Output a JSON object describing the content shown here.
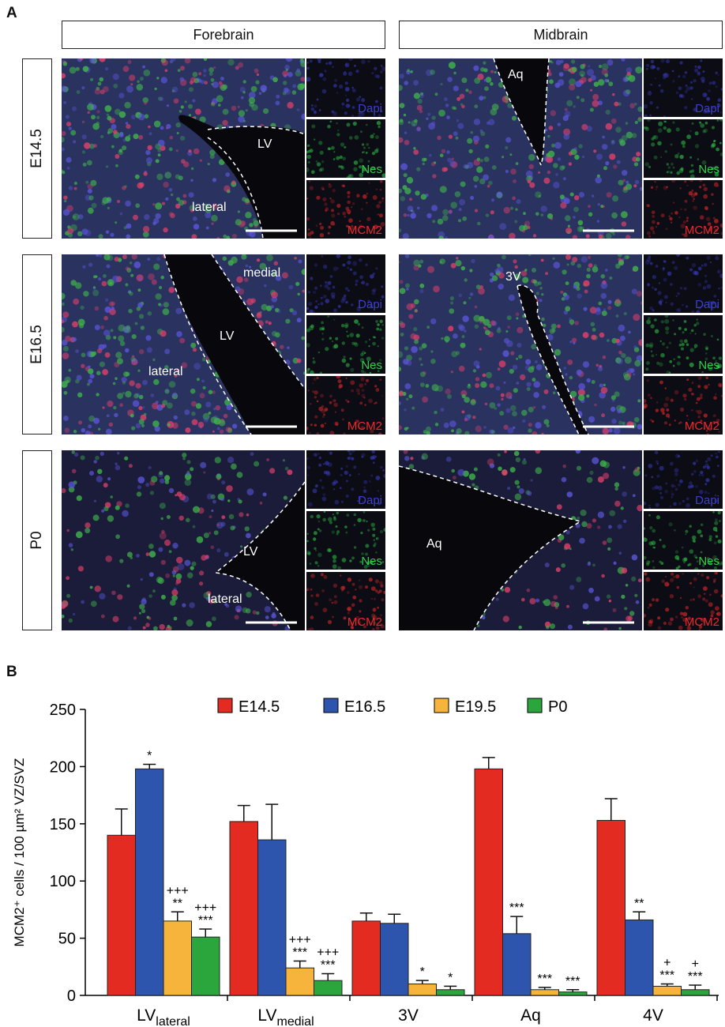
{
  "panel_a": {
    "letter": "A",
    "regions": [
      "Forebrain",
      "Midbrain"
    ],
    "stages": [
      "E14.5",
      "E16.5",
      "P0"
    ],
    "channels": [
      "Dapi",
      "Nes",
      "MCM2"
    ],
    "channel_colors": {
      "Dapi": "#3d3fd0",
      "Nes": "#2fd04a",
      "MCM2": "#ee2a2a"
    },
    "image_labels": {
      "fore_e145": [
        "LV",
        "lateral"
      ],
      "fore_e165": [
        "LV",
        "lateral",
        "medial"
      ],
      "fore_p0": [
        "LV",
        "lateral"
      ],
      "mid_e145": [
        "Aq"
      ],
      "mid_e165": [
        "3V"
      ],
      "mid_p0": [
        "Aq"
      ]
    }
  },
  "panel_b": {
    "letter": "B"
  },
  "chart_data": {
    "type": "bar",
    "xlabel": "",
    "ylabel": "MCM2⁺ cells / 100 µm² VZ/SVZ",
    "ylim": [
      0,
      250
    ],
    "yticks": [
      0,
      50,
      100,
      150,
      200,
      250
    ],
    "categories": [
      "LV_lateral",
      "LV_medial",
      "3V",
      "Aq",
      "4V"
    ],
    "category_labels": [
      {
        "main": "LV",
        "sub": "lateral"
      },
      {
        "main": "LV",
        "sub": "medial"
      },
      {
        "main": "3V",
        "sub": ""
      },
      {
        "main": "Aq",
        "sub": ""
      },
      {
        "main": "4V",
        "sub": ""
      }
    ],
    "legend_position": "top",
    "series": [
      {
        "name": "E14.5",
        "color": "#e32b22",
        "values": [
          140,
          152,
          65,
          198,
          153
        ],
        "errors": [
          23,
          14,
          7,
          10,
          19
        ]
      },
      {
        "name": "E16.5",
        "color": "#2e55ad",
        "values": [
          198,
          136,
          63,
          54,
          66
        ],
        "errors": [
          4,
          31,
          8,
          15,
          7
        ]
      },
      {
        "name": "E19.5",
        "color": "#f7b43c",
        "values": [
          65,
          24,
          10,
          5,
          8
        ],
        "errors": [
          8,
          6,
          3,
          2,
          2
        ]
      },
      {
        "name": "P0",
        "color": "#2aa63c",
        "values": [
          51,
          13,
          5,
          3,
          5
        ],
        "errors": [
          7,
          6,
          3,
          2,
          4
        ]
      }
    ],
    "annotations": [
      {
        "category": 0,
        "series": 1,
        "lines": [
          "*"
        ]
      },
      {
        "category": 0,
        "series": 2,
        "lines": [
          "+++",
          "**"
        ]
      },
      {
        "category": 0,
        "series": 3,
        "lines": [
          "+++",
          "***"
        ]
      },
      {
        "category": 1,
        "series": 2,
        "lines": [
          "+++",
          "***"
        ]
      },
      {
        "category": 1,
        "series": 3,
        "lines": [
          "+++",
          "***"
        ]
      },
      {
        "category": 2,
        "series": 2,
        "lines": [
          "*"
        ]
      },
      {
        "category": 2,
        "series": 3,
        "lines": [
          "*"
        ]
      },
      {
        "category": 3,
        "series": 1,
        "lines": [
          "***"
        ]
      },
      {
        "category": 3,
        "series": 2,
        "lines": [
          "***"
        ]
      },
      {
        "category": 3,
        "series": 3,
        "lines": [
          "***"
        ]
      },
      {
        "category": 4,
        "series": 1,
        "lines": [
          "**"
        ]
      },
      {
        "category": 4,
        "series": 2,
        "lines": [
          "+",
          "***"
        ]
      },
      {
        "category": 4,
        "series": 3,
        "lines": [
          "+",
          "***"
        ]
      }
    ]
  }
}
